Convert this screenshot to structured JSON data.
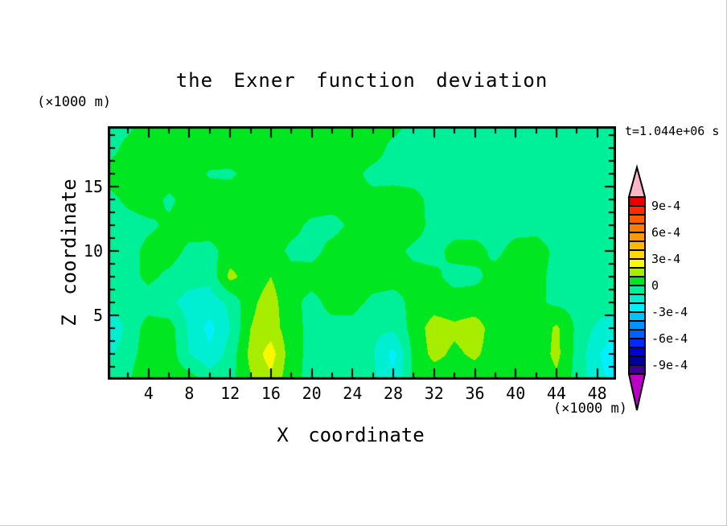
{
  "title": "the Exner function deviation",
  "time_label": "t=1.044e+06 s",
  "axes": {
    "x": {
      "title": "X coordinate",
      "unit_label": "(×1000 m)",
      "range": [
        0,
        49.84
      ],
      "major_ticks": [
        4,
        8,
        12,
        16,
        20,
        24,
        28,
        32,
        36,
        40,
        44,
        48
      ],
      "tick_labels": [
        "4",
        "8",
        "12",
        "16",
        "20",
        "24",
        "28",
        "32",
        "36",
        "40",
        "44",
        "48"
      ],
      "minor_ticks": [
        2,
        6,
        10,
        14,
        18,
        22,
        26,
        30,
        34,
        38,
        42,
        46
      ]
    },
    "z": {
      "title": "Z coordinate",
      "unit_label": "(×1000 m)",
      "range": [
        0,
        19.7
      ],
      "major_ticks": [
        5,
        10,
        15
      ],
      "tick_labels": [
        "5",
        "10",
        "15"
      ],
      "minor_ticks": [
        1,
        2,
        3,
        4,
        6,
        7,
        8,
        9,
        11,
        12,
        13,
        14,
        16,
        17,
        18,
        19
      ]
    }
  },
  "colorbar": {
    "labels": [
      "9e-4",
      "6e-4",
      "3e-4",
      "0",
      "-3e-4",
      "-6e-4",
      "-9e-4"
    ],
    "label_values": [
      0.0009,
      0.0006,
      0.0003,
      0,
      -0.0003,
      -0.0006,
      -0.0009
    ],
    "level_step": 0.0001,
    "palette": [
      "#E80000",
      "#FF2A00",
      "#FF5C00",
      "#FF7C00",
      "#FF9900",
      "#FFB800",
      "#FFD800",
      "#F8F800",
      "#A8EC00",
      "#00E620",
      "#00F09A",
      "#00EFD2",
      "#00F0FF",
      "#00C4FF",
      "#0092FF",
      "#0060FF",
      "#0028FF",
      "#0000DC",
      "#0000A0",
      "#3C0096"
    ],
    "arrow_top_color": "#FFB4C8",
    "arrow_bottom_color": "#BC00C8",
    "outline_color": "#000000"
  },
  "chart_data": {
    "type": "heatmap",
    "title": "the Exner function deviation",
    "xlabel": "X coordinate",
    "ylabel": "Z coordinate",
    "x_unit": "×1000 m",
    "z_unit": "×1000 m",
    "time": "t=1.044e+06 s",
    "xlim": [
      0,
      49.84
    ],
    "zlim": [
      0,
      19.7
    ],
    "value_scale": 0.0001,
    "contour_interval": 0.0001,
    "legend_position": "right",
    "grid": {
      "x_start": 0,
      "x_step": 2,
      "z_top": 20,
      "z_step": 2,
      "values_unit": "1e-4",
      "rows_top_to_bottom": true,
      "values": [
        [
          -0.4,
          -0.3,
          0.5,
          0.6,
          0.6,
          0.6,
          0.6,
          0.6,
          0.6,
          0.6,
          0.6,
          0.6,
          0.6,
          0.5,
          0.4,
          -0.3,
          -0.4,
          -0.4,
          -0.4,
          -0.4,
          -0.4,
          -0.4,
          -0.4,
          -0.4,
          -0.4,
          -0.4
        ],
        [
          -0.4,
          0.3,
          0.6,
          0.6,
          0.6,
          0.6,
          0.6,
          0.6,
          0.6,
          0.6,
          0.6,
          0.6,
          0.6,
          0.5,
          -0.3,
          -0.4,
          -0.4,
          -0.4,
          -0.4,
          -0.4,
          -0.4,
          -0.4,
          -0.4,
          -0.4,
          -0.4,
          -0.4
        ],
        [
          0.4,
          0.5,
          0.6,
          0.6,
          0.5,
          -0.1,
          -0.15,
          0.3,
          0.6,
          0.6,
          0.6,
          0.5,
          0.3,
          -0.3,
          -0.4,
          -0.4,
          -0.4,
          -0.4,
          -0.4,
          -0.4,
          -0.4,
          -0.4,
          -0.4,
          -0.4,
          -0.4,
          0.15
        ],
        [
          -0.3,
          0.2,
          0.5,
          -0.2,
          0.4,
          0.5,
          0.5,
          0.5,
          0.6,
          0.6,
          0.5,
          0.4,
          0.3,
          0.3,
          0.5,
          0.3,
          -0.3,
          -0.4,
          -0.4,
          -0.4,
          -0.4,
          -0.4,
          -0.4,
          -0.4,
          -0.4,
          -0.4
        ],
        [
          -0.4,
          -0.35,
          -0.2,
          0.2,
          0.4,
          0.5,
          0.5,
          0.4,
          0.4,
          0.3,
          -0.2,
          -0.3,
          0.2,
          0.5,
          0.5,
          0.4,
          -0.3,
          -0.4,
          -0.4,
          -0.3,
          -0.3,
          -0.3,
          -0.4,
          -0.4,
          -0.4,
          -0.4
        ],
        [
          -0.4,
          -0.4,
          0.3,
          0.4,
          -0.2,
          -0.3,
          0.4,
          0.5,
          0.4,
          -0.2,
          -0.3,
          0.3,
          0.5,
          0.4,
          0.3,
          -0.2,
          -0.3,
          0.3,
          0.3,
          -0.2,
          0.3,
          0.4,
          -0.2,
          -0.3,
          -0.3,
          -0.3
        ],
        [
          -0.4,
          -0.3,
          0.2,
          -0.2,
          -0.6,
          -0.7,
          1.3,
          0.5,
          1.0,
          0.3,
          0.4,
          0.5,
          0.4,
          0.4,
          0.4,
          0.3,
          0.2,
          -0.3,
          -0.2,
          0.3,
          0.4,
          0.3,
          -0.3,
          -0.3,
          -0.4,
          -0.4
        ],
        [
          -0.5,
          -0.4,
          -0.4,
          -0.8,
          -1.4,
          -1.5,
          -0.8,
          0.8,
          1.4,
          0.3,
          -0.3,
          0.3,
          0.3,
          -0.2,
          -0.4,
          0.3,
          0.5,
          0.4,
          0.4,
          0.4,
          0.4,
          0.2,
          -0.2,
          -0.3,
          -0.4,
          -0.5
        ],
        [
          -2.2,
          -0.6,
          0.4,
          0.5,
          -1.2,
          -2.3,
          -1.0,
          1.0,
          1.5,
          0.4,
          -0.3,
          -0.3,
          -0.3,
          -0.8,
          -0.8,
          0.4,
          1.5,
          1.2,
          1.5,
          0.5,
          0.3,
          0.2,
          1.2,
          -0.2,
          -1.2,
          -2.0
        ],
        [
          -1.2,
          -0.4,
          0.5,
          0.6,
          -1.0,
          -1.8,
          -0.6,
          1.3,
          2.5,
          0.4,
          -0.3,
          -0.2,
          -0.3,
          -0.9,
          -2.3,
          0.3,
          1.3,
          0.8,
          1.2,
          0.5,
          0.4,
          0.3,
          1.3,
          -0.3,
          -1.9,
          -2.6
        ],
        [
          -0.6,
          -0.2,
          1.1,
          0.5,
          0.5,
          -0.4,
          -0.3,
          0.9,
          1.8,
          0.3,
          -0.3,
          -0.3,
          -0.4,
          -0.8,
          -1.9,
          0.2,
          0.4,
          0.5,
          0.4,
          0.5,
          0.4,
          0.2,
          0.8,
          -0.3,
          -1.8,
          -2.2
        ]
      ]
    }
  }
}
